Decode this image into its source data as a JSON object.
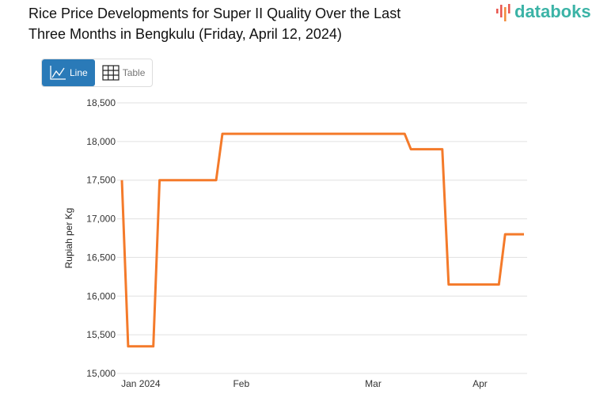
{
  "header": {
    "title": "Rice Price Developments for Super II Quality Over the Last Three Months in Bengkulu (Friday, April 12, 2024)",
    "logo": "databoks"
  },
  "toggle": {
    "line_label": "Line",
    "table_label": "Table",
    "active": "Line",
    "line_icon": "line-chart-icon",
    "table_icon": "table-grid-icon"
  },
  "colors": {
    "line": "#f47a2a",
    "active_button": "#2a7ab8",
    "logo": "#3bb3a6",
    "grid": "#e0e0e0"
  },
  "chart_data": {
    "type": "line",
    "title": "Rice Price Developments for Super II Quality Over the Last Three Months in Bengkulu (Friday, April 12, 2024)",
    "ylabel": "Rupiah per Kg",
    "ylim": [
      15000,
      18500
    ],
    "yticks": [
      15000,
      15500,
      16000,
      16500,
      17000,
      17500,
      18000,
      18500
    ],
    "ytick_labels": [
      "15,000",
      "15,500",
      "16,000",
      "16,500",
      "17,000",
      "17,500",
      "18,000",
      "18,500"
    ],
    "xticks": [
      {
        "index": 3,
        "label": "Jan 2024"
      },
      {
        "index": 19,
        "label": "Feb"
      },
      {
        "index": 40,
        "label": "Mar"
      },
      {
        "index": 57,
        "label": "Apr"
      }
    ],
    "grid": true,
    "values": [
      17500,
      15350,
      15350,
      15350,
      15350,
      15350,
      17500,
      17500,
      17500,
      17500,
      17500,
      17500,
      17500,
      17500,
      17500,
      17500,
      18100,
      18100,
      18100,
      18100,
      18100,
      18100,
      18100,
      18100,
      18100,
      18100,
      18100,
      18100,
      18100,
      18100,
      18100,
      18100,
      18100,
      18100,
      18100,
      18100,
      18100,
      18100,
      18100,
      18100,
      18100,
      18100,
      18100,
      18100,
      18100,
      18100,
      17900,
      17900,
      17900,
      17900,
      17900,
      17900,
      16150,
      16150,
      16150,
      16150,
      16150,
      16150,
      16150,
      16150,
      16150,
      16800,
      16800,
      16800,
      16800
    ]
  }
}
